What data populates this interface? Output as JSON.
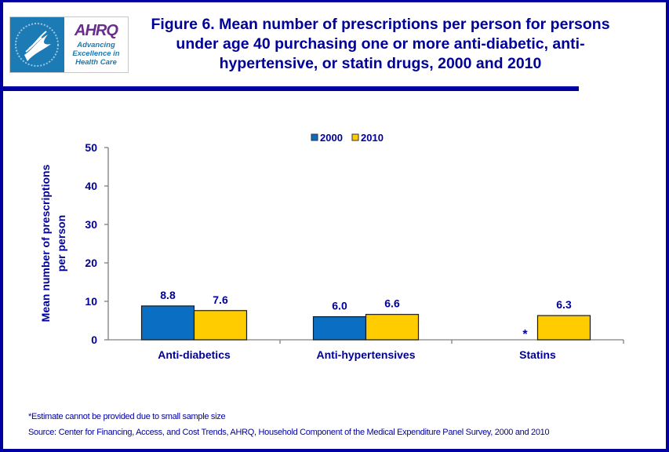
{
  "header": {
    "logo_hhs_icon": "hhs-eagle-seal-icon",
    "logo_ahrq_mark": "AHRQ",
    "logo_ahrq_tagline": [
      "Advancing",
      "Excellence in",
      "Health Care"
    ],
    "title": "Figure 6. Mean number of prescriptions per person for persons under age 40 purchasing one or more anti-diabetic, anti-hypertensive, or statin drugs, 2000 and 2010"
  },
  "colors": {
    "frame": "#0000a0",
    "text": "#000099",
    "series_2000": "#0a6fc2",
    "series_2010": "#ffcc00",
    "axis": "#808080"
  },
  "chart_data": {
    "type": "bar",
    "title": "Figure 6. Mean number of prescriptions per person for persons under age 40 purchasing one or more anti-diabetic, anti-hypertensive, or statin drugs, 2000 and 2010",
    "xlabel": "",
    "ylabel": "Mean number of prescriptions per person",
    "ylabel_lines": [
      "Mean number of prescriptions",
      "per person"
    ],
    "ylim": [
      0,
      50
    ],
    "yticks": [
      0,
      10,
      20,
      30,
      40,
      50
    ],
    "grid": false,
    "legend_position": "top-center",
    "categories": [
      "Anti-diabetics",
      "Anti-hypertensives",
      "Statins"
    ],
    "series": [
      {
        "name": "2000",
        "values": [
          8.8,
          6.0,
          null
        ],
        "labels": [
          "8.8",
          "6.0",
          "*"
        ]
      },
      {
        "name": "2010",
        "values": [
          7.6,
          6.6,
          6.3
        ],
        "labels": [
          "7.6",
          "6.6",
          "6.3"
        ]
      }
    ],
    "annotations": [
      "* shown where 2000 Statins estimate cannot be provided"
    ]
  },
  "footer": {
    "footnote": "*Estimate cannot be provided due to small sample size",
    "source": "Source: Center for Financing, Access, and Cost Trends, AHRQ, Household Component of the Medical Expenditure Panel Survey, 2000 and 2010"
  }
}
